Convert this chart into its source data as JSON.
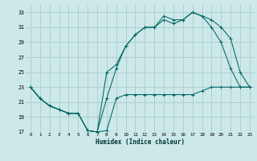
{
  "xlabel": "Humidex (Indice chaleur)",
  "xlim": [
    -0.5,
    23.5
  ],
  "ylim": [
    17,
    34
  ],
  "yticks": [
    17,
    19,
    21,
    23,
    25,
    27,
    29,
    31,
    33
  ],
  "xticks": [
    0,
    1,
    2,
    3,
    4,
    5,
    6,
    7,
    8,
    9,
    10,
    11,
    12,
    13,
    14,
    15,
    16,
    17,
    18,
    19,
    20,
    21,
    22,
    23
  ],
  "bg_color": "#cce8e8",
  "grid_color": "#aacccc",
  "line_color": "#006666",
  "line1_x": [
    0,
    1,
    2,
    3,
    4,
    5,
    6,
    7,
    8,
    9,
    10,
    11,
    12,
    13,
    14,
    15,
    16,
    17,
    18,
    19,
    20,
    21,
    22,
    23
  ],
  "line1_y": [
    23,
    21.5,
    20.5,
    20,
    19.5,
    19.5,
    17.2,
    17.0,
    17.2,
    21.5,
    22,
    22,
    22,
    22,
    22,
    22,
    22,
    22,
    22.5,
    23,
    23,
    23,
    23,
    23
  ],
  "line2_x": [
    0,
    1,
    2,
    3,
    4,
    5,
    6,
    7,
    8,
    9,
    10,
    11,
    12,
    13,
    14,
    15,
    16,
    17,
    18,
    19,
    20,
    21,
    22,
    23
  ],
  "line2_y": [
    23,
    21.5,
    20.5,
    20,
    19.5,
    19.5,
    17.2,
    17.0,
    25,
    26,
    28.5,
    30,
    31,
    31,
    32.5,
    32,
    32,
    33,
    32.5,
    31,
    29.0,
    25.5,
    23,
    23
  ],
  "line3_x": [
    0,
    1,
    2,
    3,
    4,
    5,
    6,
    7,
    8,
    9,
    10,
    11,
    12,
    13,
    14,
    15,
    16,
    17,
    18,
    19,
    20,
    21,
    22,
    23
  ],
  "line3_y": [
    23,
    21.5,
    20.5,
    20,
    19.5,
    19.5,
    17.2,
    17.0,
    21.5,
    25.5,
    28.5,
    30,
    31,
    31,
    32.0,
    31.5,
    32,
    33,
    32.5,
    32,
    31,
    29.5,
    25,
    23
  ]
}
